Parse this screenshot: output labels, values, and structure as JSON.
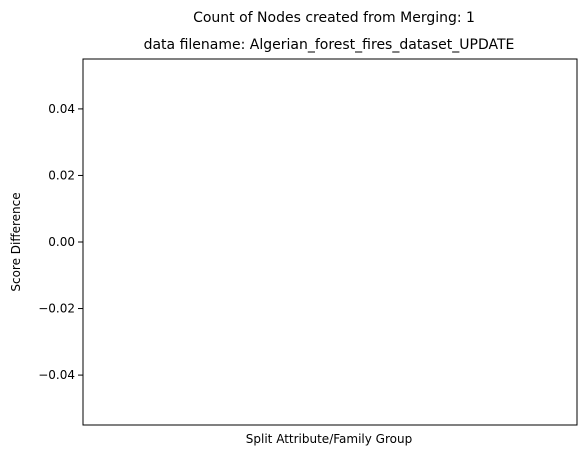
{
  "chart_data": {
    "type": "bar",
    "suptitle": "Count of Nodes created from Merging: 1",
    "title": "data filename: Algerian_forest_fires_dataset_UPDATE",
    "xlabel": "Split Attribute/Family Group",
    "ylabel": "Score Difference",
    "categories": [],
    "values": [],
    "ylim": [
      -0.055,
      0.055
    ],
    "yticks": [
      0.04,
      0.02,
      0.0,
      -0.02,
      -0.04
    ],
    "ytick_labels": [
      "0.04",
      "0.02",
      "0.00",
      "−0.02",
      "−0.04"
    ],
    "grid": false
  }
}
